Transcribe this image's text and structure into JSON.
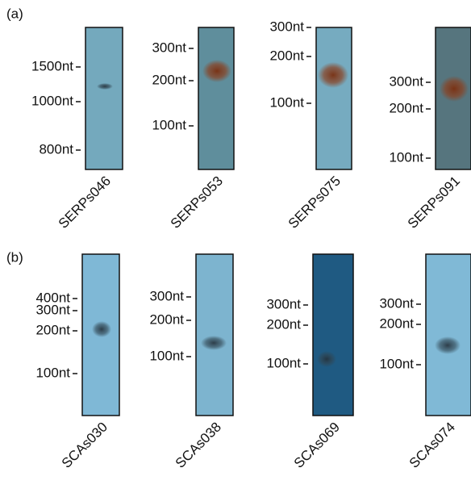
{
  "panels": [
    {
      "label": "(a)",
      "lanes": [
        {
          "name": "SERPs046",
          "markers": [
            "1500nt",
            "1000nt",
            "800nt"
          ]
        },
        {
          "name": "SERPs053",
          "markers": [
            "300nt",
            "200nt",
            "100nt"
          ]
        },
        {
          "name": "SERPs075",
          "markers": [
            "300nt",
            "200nt",
            "100nt"
          ]
        },
        {
          "name": "SERPs091",
          "markers": [
            "300nt",
            "200nt",
            "100nt"
          ]
        }
      ]
    },
    {
      "label": "(b)",
      "lanes": [
        {
          "name": "SCAs030",
          "markers": [
            "400nt",
            "300nt",
            "200nt",
            "100nt"
          ]
        },
        {
          "name": "SCAs038",
          "markers": [
            "300nt",
            "200nt",
            "100nt"
          ]
        },
        {
          "name": "SCAs069",
          "markers": [
            "300nt",
            "200nt",
            "100nt"
          ]
        },
        {
          "name": "SCAs074",
          "markers": [
            "300nt",
            "200nt",
            "100nt"
          ]
        }
      ]
    }
  ]
}
